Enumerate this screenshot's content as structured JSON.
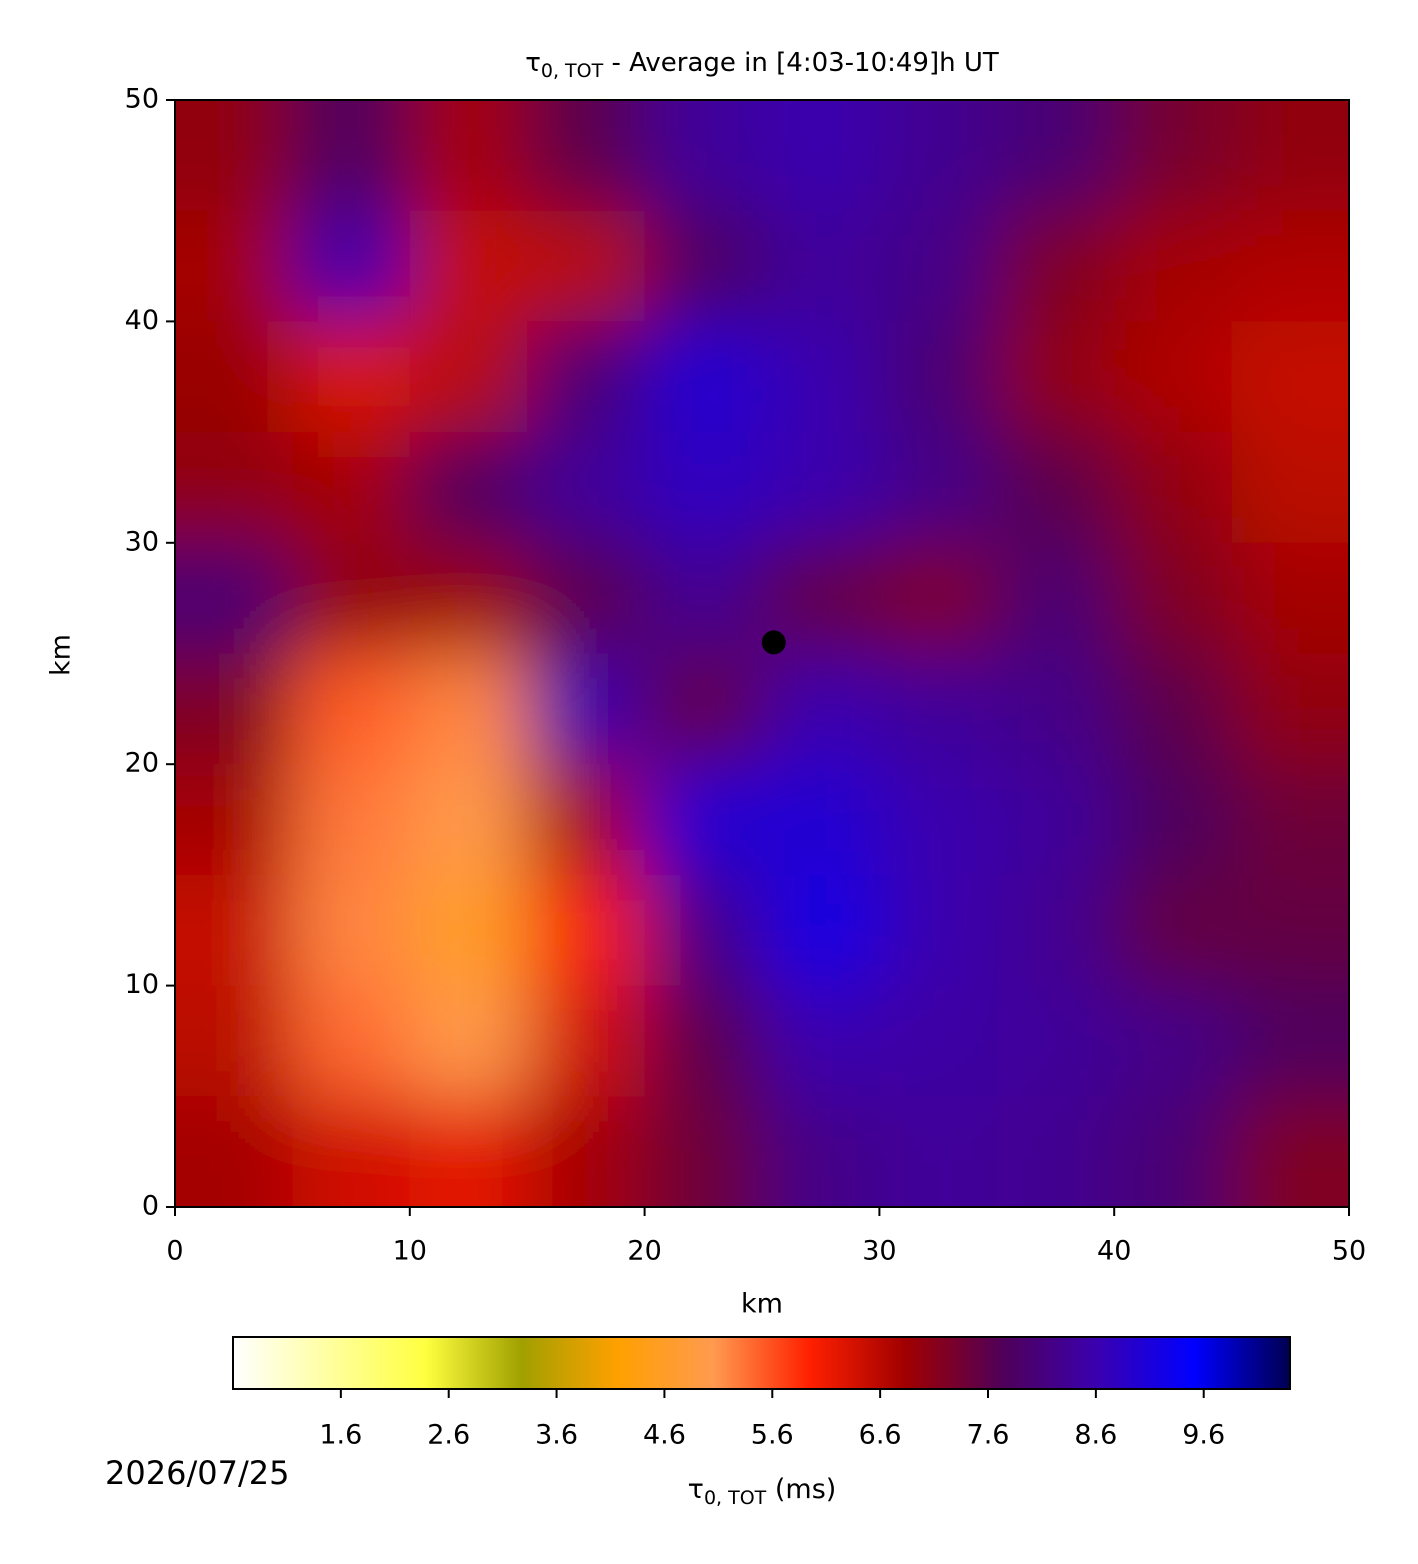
{
  "chart_data": {
    "type": "heatmap",
    "title": {
      "symbol": "τ",
      "subscript": "0, TOT",
      "text": " - Average in [4:03-10:49]h UT"
    },
    "x_label": "km",
    "y_label": "km",
    "xlim": [
      0,
      50
    ],
    "ylim": [
      0,
      50
    ],
    "xticks": [
      0,
      10,
      20,
      30,
      40,
      50
    ],
    "yticks": [
      0,
      10,
      20,
      30,
      40,
      50
    ],
    "x": [
      2.5,
      7.5,
      12.5,
      17.5,
      22.5,
      27.5,
      32.5,
      37.5,
      42.5,
      47.5
    ],
    "y": [
      47.5,
      42.5,
      37.5,
      32.5,
      27.5,
      22.5,
      17.5,
      12.5,
      7.5,
      2.5
    ],
    "z": [
      [
        7.0,
        7.8,
        6.8,
        7.6,
        8.4,
        8.6,
        8.3,
        8.0,
        7.3,
        7.0
      ],
      [
        6.8,
        8.6,
        6.5,
        6.6,
        7.8,
        8.4,
        8.2,
        7.2,
        6.8,
        6.7
      ],
      [
        6.9,
        6.3,
        6.6,
        8.0,
        9.0,
        8.6,
        8.0,
        7.0,
        6.7,
        6.5
      ],
      [
        7.0,
        6.8,
        7.8,
        8.4,
        8.8,
        8.6,
        8.2,
        7.6,
        7.0,
        6.6
      ],
      [
        8.0,
        7.0,
        6.9,
        7.6,
        8.3,
        7.5,
        7.2,
        8.0,
        7.2,
        6.8
      ],
      [
        7.2,
        5.5,
        5.2,
        8.6,
        7.5,
        8.6,
        8.4,
        8.2,
        7.6,
        7.0
      ],
      [
        6.8,
        5.3,
        5.0,
        6.8,
        9.0,
        9.0,
        8.6,
        8.4,
        7.8,
        7.4
      ],
      [
        6.5,
        5.2,
        4.6,
        6.0,
        8.2,
        9.2,
        8.6,
        8.3,
        7.5,
        7.5
      ],
      [
        6.6,
        5.4,
        5.0,
        6.4,
        7.6,
        8.6,
        8.5,
        8.4,
        8.2,
        7.8
      ],
      [
        6.8,
        6.4,
        6.2,
        6.8,
        7.4,
        8.2,
        8.4,
        8.3,
        8.0,
        7.2
      ]
    ],
    "marker": {
      "x": 25.5,
      "y": 25.5,
      "color": "#000000"
    },
    "colormap": [
      "#ffffff",
      "#ffffa0",
      "#ffff40",
      "#a0a000",
      "#ffa000",
      "#ff9a50",
      "#ff2000",
      "#a00000",
      "#500058",
      "#3a00b0",
      "#0000ff",
      "#000050"
    ],
    "clim": [
      0.6,
      10.4
    ],
    "cticks": [
      1.6,
      2.6,
      3.6,
      4.6,
      5.6,
      6.6,
      7.6,
      8.6,
      9.6
    ],
    "colorbar_label": {
      "symbol": "τ",
      "subscript": "0, TOT",
      "text": " (ms)"
    },
    "date": "2026/07/25"
  }
}
